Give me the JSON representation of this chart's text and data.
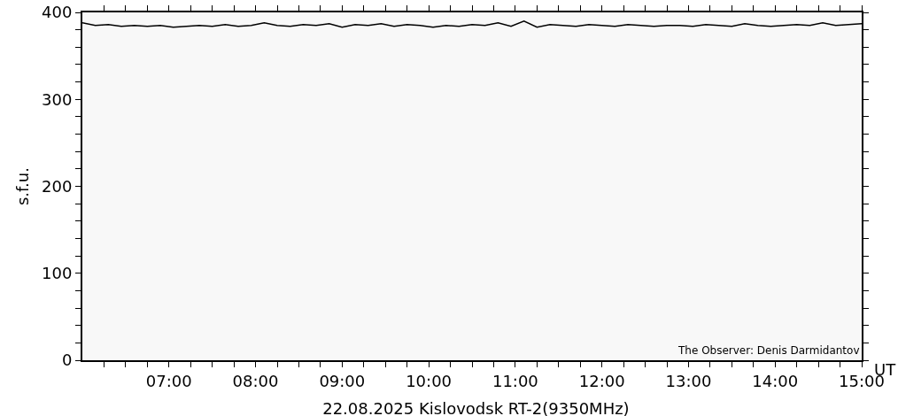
{
  "chart_data": {
    "type": "line",
    "title": "22.08.2025 Kislovodsk RT-2(9350MHz)",
    "xlabel": "UT",
    "ylabel": "s.f.u.",
    "annotations": [
      "The Observer: Denis Darmidantov"
    ],
    "x": [
      6.0,
      6.15,
      6.3,
      6.45,
      6.6,
      6.75,
      6.9,
      7.05,
      7.2,
      7.35,
      7.5,
      7.65,
      7.8,
      7.95,
      8.1,
      8.25,
      8.4,
      8.55,
      8.7,
      8.85,
      9.0,
      9.15,
      9.3,
      9.45,
      9.6,
      9.75,
      9.9,
      10.05,
      10.2,
      10.35,
      10.5,
      10.65,
      10.8,
      10.95,
      11.1,
      11.25,
      11.4,
      11.55,
      11.7,
      11.85,
      12.0,
      12.15,
      12.3,
      12.45,
      12.6,
      12.75,
      12.9,
      13.05,
      13.2,
      13.35,
      13.5,
      13.65,
      13.8,
      13.95,
      14.1,
      14.25,
      14.4,
      14.55,
      14.7,
      14.85,
      15.0
    ],
    "series": [
      {
        "color": "#000000",
        "values": [
          388,
          385,
          386,
          384,
          385,
          384,
          385,
          383,
          384,
          385,
          384,
          386,
          384,
          385,
          388,
          385,
          384,
          386,
          385,
          387,
          383,
          386,
          385,
          387,
          384,
          386,
          385,
          383,
          385,
          384,
          386,
          385,
          388,
          384,
          390,
          383,
          386,
          385,
          384,
          386,
          385,
          384,
          386,
          385,
          384,
          385,
          385,
          384,
          386,
          385,
          384,
          387,
          385,
          384,
          385,
          386,
          385,
          388,
          385,
          386,
          387
        ]
      }
    ],
    "xlim": [
      6,
      15
    ],
    "xticks": [
      {
        "value": 6.25,
        "label": null
      },
      {
        "value": 6.5,
        "label": null
      },
      {
        "value": 6.75,
        "label": null
      },
      {
        "value": 7,
        "label": "07:00"
      },
      {
        "value": 7.25,
        "label": null
      },
      {
        "value": 7.5,
        "label": null
      },
      {
        "value": 7.75,
        "label": null
      },
      {
        "value": 8,
        "label": "08:00"
      },
      {
        "value": 8.25,
        "label": null
      },
      {
        "value": 8.5,
        "label": null
      },
      {
        "value": 8.75,
        "label": null
      },
      {
        "value": 9,
        "label": "09:00"
      },
      {
        "value": 9.25,
        "label": null
      },
      {
        "value": 9.5,
        "label": null
      },
      {
        "value": 9.75,
        "label": null
      },
      {
        "value": 10,
        "label": "10:00"
      },
      {
        "value": 10.25,
        "label": null
      },
      {
        "value": 10.5,
        "label": null
      },
      {
        "value": 10.75,
        "label": null
      },
      {
        "value": 11,
        "label": "11:00"
      },
      {
        "value": 11.25,
        "label": null
      },
      {
        "value": 11.5,
        "label": null
      },
      {
        "value": 11.75,
        "label": null
      },
      {
        "value": 12,
        "label": "12:00"
      },
      {
        "value": 12.25,
        "label": null
      },
      {
        "value": 12.5,
        "label": null
      },
      {
        "value": 12.75,
        "label": null
      },
      {
        "value": 13,
        "label": "13:00"
      },
      {
        "value": 13.25,
        "label": null
      },
      {
        "value": 13.5,
        "label": null
      },
      {
        "value": 13.75,
        "label": null
      },
      {
        "value": 14,
        "label": "14:00"
      },
      {
        "value": 14.25,
        "label": null
      },
      {
        "value": 14.5,
        "label": null
      },
      {
        "value": 14.75,
        "label": null
      },
      {
        "value": 15,
        "label": "15:00"
      }
    ],
    "ylim": [
      0,
      400
    ],
    "yticks": [
      0,
      {
        "value": 20,
        "label": null
      },
      {
        "value": 40,
        "label": null
      },
      {
        "value": 60,
        "label": null
      },
      {
        "value": 80,
        "label": null
      },
      100,
      {
        "value": 120,
        "label": null
      },
      {
        "value": 140,
        "label": null
      },
      {
        "value": 160,
        "label": null
      },
      {
        "value": 180,
        "label": null
      },
      200,
      {
        "value": 220,
        "label": null
      },
      {
        "value": 240,
        "label": null
      },
      {
        "value": 260,
        "label": null
      },
      {
        "value": 280,
        "label": null
      },
      300,
      {
        "value": 320,
        "label": null
      },
      {
        "value": 340,
        "label": null
      },
      {
        "value": 360,
        "label": null
      },
      {
        "value": 380,
        "label": null
      },
      400
    ],
    "grid": false,
    "marker": "none",
    "line_style": "solid"
  }
}
